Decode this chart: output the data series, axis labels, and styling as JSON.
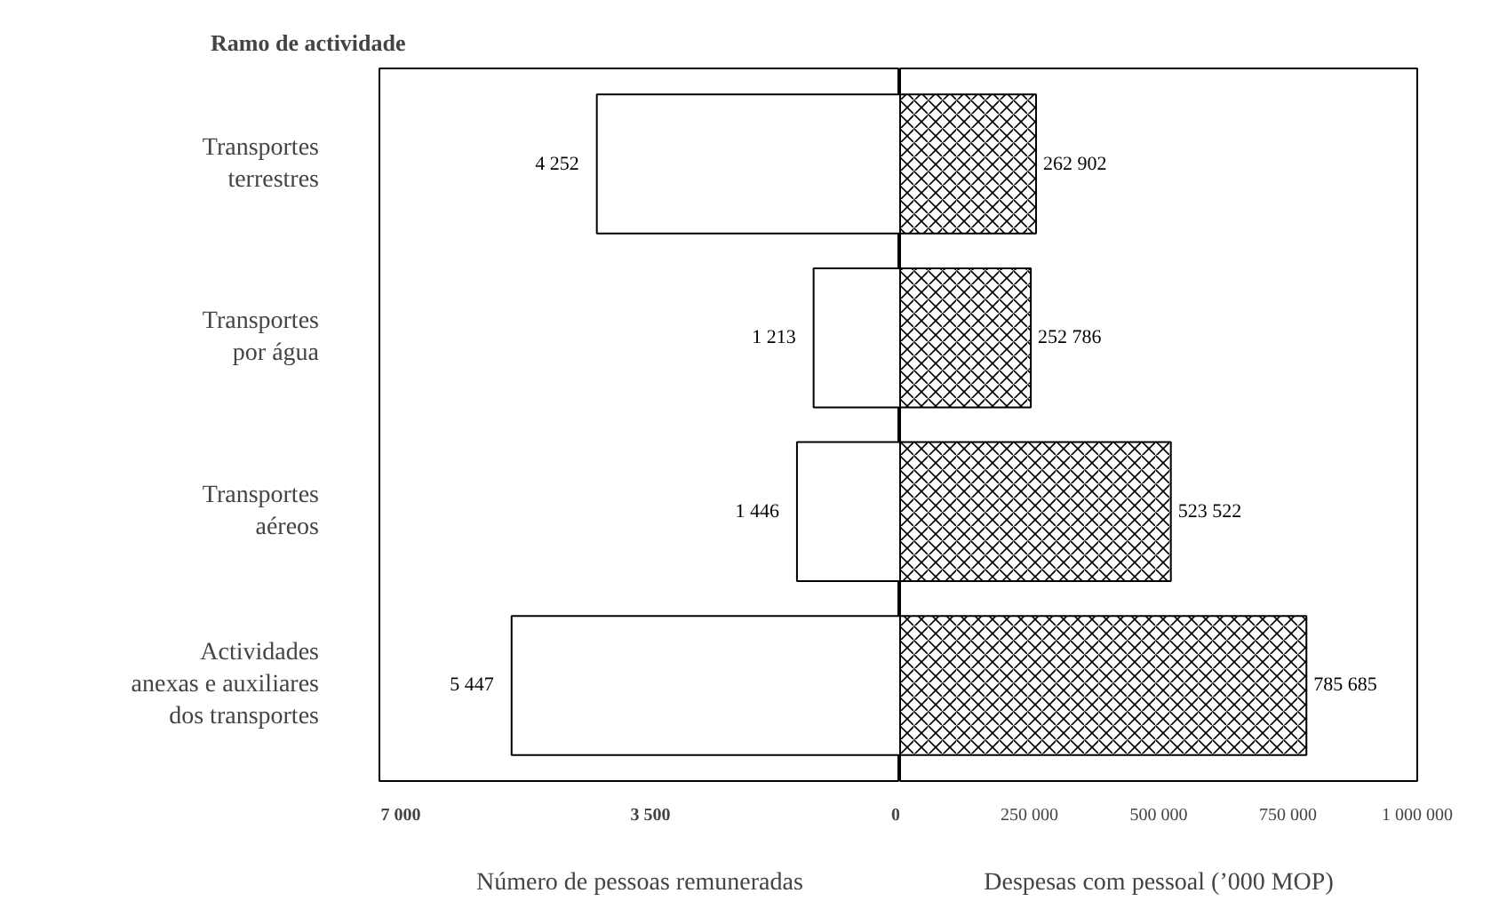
{
  "chart_data": [
    {
      "type": "bar",
      "orientation": "horizontal",
      "ylabel": "Ramo de actividade",
      "xlabel": "Número de pessoas remuneradas",
      "categories": [
        "Transportes\nterrestres",
        "Transportes\npor água",
        "Transportes\naéreos",
        "Actividades\nanexas e auxiliares\ndos transportes"
      ],
      "values": [
        4252,
        1213,
        1446,
        5447
      ],
      "value_labels": [
        "4 252",
        "1 213",
        "1 446",
        "5 447"
      ],
      "color": "#ffffff",
      "xlim": [
        7300,
        0
      ],
      "xticks": [
        {
          "value": 7000,
          "label": "7 000"
        },
        {
          "value": 3500,
          "label": "3 500"
        },
        0
      ],
      "grid": false
    },
    {
      "type": "bar",
      "orientation": "horizontal",
      "xlabel": "Despesas com pessoal (’000 MOP)",
      "tick_labels": "x",
      "categories": [
        null,
        null,
        null,
        null
      ],
      "values": [
        262902,
        252786,
        523522,
        785685
      ],
      "value_labels": [
        "262 902",
        "252 786",
        "523 522",
        "785 685"
      ],
      "color": "#ffffff",
      "xlim": [
        0,
        1000000
      ],
      "xticks": [
        {
          "value": 0,
          "label": null
        },
        {
          "value": 250000,
          "label": "250 000"
        },
        {
          "value": 500000,
          "label": "500 000"
        },
        {
          "value": 750000,
          "label": "750 000"
        },
        {
          "value": 1000000,
          "label": "1 000 000"
        }
      ],
      "grid": false
    }
  ]
}
